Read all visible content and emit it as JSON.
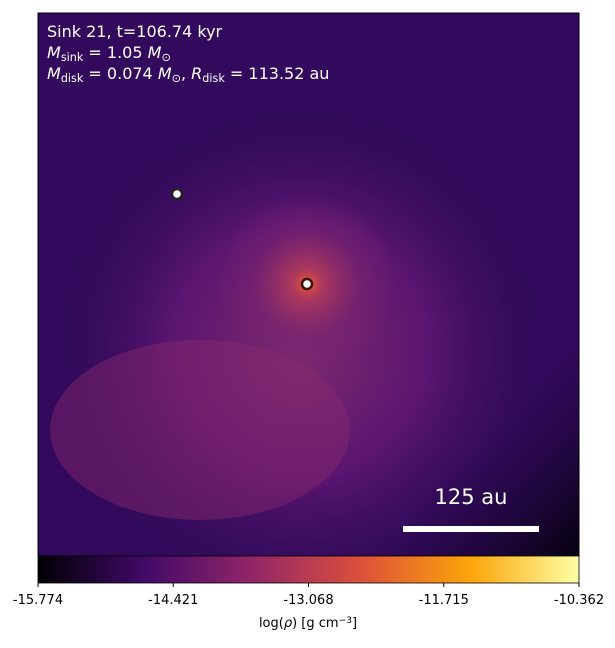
{
  "chart_data": {
    "type": "image",
    "annotations": [
      [
        {
          "t": "Sink 21, t=106.74 kyr"
        }
      ],
      [
        {
          "i": "M"
        },
        {
          "sub": "sink"
        },
        {
          "t": " = 1.05 "
        },
        {
          "i": "M"
        },
        {
          "sub": "⊙"
        }
      ],
      [
        {
          "i": "M"
        },
        {
          "sub": "disk"
        },
        {
          "t": " = 0.074 "
        },
        {
          "i": "M"
        },
        {
          "sub": "⊙"
        },
        {
          "t": ", "
        },
        {
          "i": "R"
        },
        {
          "sub": "disk"
        },
        {
          "t": " = 113.52 au"
        }
      ]
    ],
    "scalebar_label": "125 au",
    "colorbar": {
      "lim": [
        -15.774,
        -10.362
      ],
      "ticks": [
        -15.774,
        -14.421,
        -13.068,
        -11.715,
        -10.362
      ],
      "label": [
        {
          "t": "log("
        },
        {
          "i": "ρ"
        },
        {
          "t": ") [g cm"
        },
        {
          "sup": "−3"
        },
        {
          "t": "]"
        }
      ],
      "cmap": "inferno"
    }
  }
}
